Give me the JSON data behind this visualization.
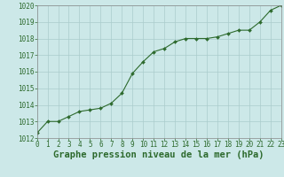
{
  "x": [
    0,
    1,
    2,
    3,
    4,
    5,
    6,
    7,
    8,
    9,
    10,
    11,
    12,
    13,
    14,
    15,
    16,
    17,
    18,
    19,
    20,
    21,
    22,
    23
  ],
  "y": [
    1012.3,
    1013.0,
    1013.0,
    1013.3,
    1013.6,
    1013.7,
    1013.8,
    1014.1,
    1014.7,
    1015.9,
    1016.6,
    1017.2,
    1017.4,
    1017.8,
    1018.0,
    1018.0,
    1018.0,
    1018.1,
    1018.3,
    1018.5,
    1018.5,
    1019.0,
    1019.7,
    1020.0
  ],
  "ylim": [
    1012,
    1020
  ],
  "yticks": [
    1012,
    1013,
    1014,
    1015,
    1016,
    1017,
    1018,
    1019,
    1020
  ],
  "xlim": [
    0,
    23
  ],
  "xticks": [
    0,
    1,
    2,
    3,
    4,
    5,
    6,
    7,
    8,
    9,
    10,
    11,
    12,
    13,
    14,
    15,
    16,
    17,
    18,
    19,
    20,
    21,
    22,
    23
  ],
  "line_color": "#2d6a2d",
  "marker": "D",
  "marker_size": 2,
  "bg_color": "#cce8e8",
  "grid_color": "#aacccc",
  "xlabel": "Graphe pression niveau de la mer (hPa)",
  "xlabel_color": "#2d6a2d",
  "axis_color": "#888888",
  "tick_color": "#2d6a2d",
  "tick_fontsize": 5.5,
  "xlabel_fontsize": 7.5
}
